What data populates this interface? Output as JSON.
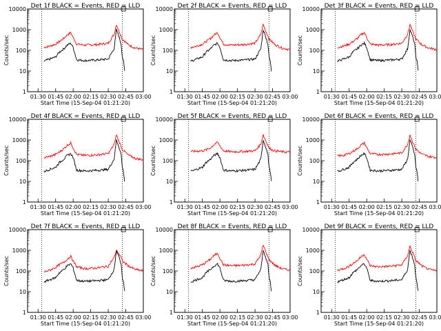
{
  "chart_data": {
    "type": "line",
    "yscale": "log",
    "ylim": [
      1,
      10000
    ],
    "xlim": [
      "01:21",
      "03:00"
    ],
    "ylabel": "Counts/sec",
    "xlabel": "Start Time (15-Sep-04 01:21:20)",
    "x_ticks": [
      "01:30",
      "01:45",
      "02:00",
      "02:15",
      "02:30",
      "02:45",
      "03:00"
    ],
    "y_ticks": [
      "1",
      "10",
      "100",
      "1000",
      "10000"
    ],
    "reference_lines": [
      "01:33",
      "02:42"
    ],
    "colors": {
      "events": "#000000",
      "lld": "#ff0000"
    },
    "time_points": [
      "01:35",
      "01:40",
      "01:45",
      "01:48",
      "01:52",
      "01:55",
      "01:58",
      "02:00",
      "02:03",
      "02:10",
      "02:20",
      "02:30",
      "02:35",
      "02:37",
      "02:39",
      "02:41",
      "02:42",
      "02:43",
      "02:44",
      "02:47",
      "02:53",
      "03:00"
    ],
    "panels": [
      {
        "title": "Det 1f BLACK = Events, RED = LLD",
        "events": [
          30,
          38,
          48,
          80,
          120,
          180,
          220,
          140,
          35,
          32,
          34,
          38,
          120,
          1000,
          500,
          200,
          50,
          30,
          10,
          null,
          null,
          null
        ],
        "lld": [
          140,
          160,
          200,
          260,
          380,
          560,
          720,
          420,
          200,
          180,
          190,
          220,
          600,
          1800,
          900,
          500,
          330,
          320,
          280,
          190,
          130,
          110
        ]
      },
      {
        "title": "Det 2f BLACK = Events, RED = LLD",
        "events": [
          30,
          38,
          48,
          80,
          120,
          180,
          220,
          140,
          35,
          32,
          34,
          38,
          120,
          1000,
          500,
          200,
          50,
          30,
          10,
          null,
          null,
          null
        ],
        "lld": [
          140,
          160,
          200,
          260,
          380,
          560,
          720,
          420,
          200,
          180,
          190,
          220,
          600,
          1800,
          900,
          500,
          330,
          320,
          280,
          190,
          130,
          110
        ]
      },
      {
        "title": "Det 3f BLACK = Events, RED = LLD",
        "events": [
          30,
          38,
          48,
          80,
          120,
          180,
          220,
          140,
          35,
          32,
          34,
          38,
          120,
          1000,
          500,
          200,
          50,
          30,
          10,
          null,
          null,
          null
        ],
        "lld": [
          140,
          160,
          200,
          260,
          380,
          560,
          720,
          420,
          200,
          180,
          190,
          220,
          600,
          1800,
          900,
          500,
          330,
          320,
          280,
          190,
          130,
          110
        ]
      },
      {
        "title": "Det 4f BLACK = Events, RED = LLD",
        "events": [
          30,
          38,
          48,
          80,
          120,
          180,
          220,
          140,
          35,
          32,
          34,
          38,
          120,
          1000,
          500,
          200,
          50,
          30,
          10,
          null,
          null,
          null
        ],
        "lld": [
          140,
          160,
          200,
          260,
          380,
          560,
          720,
          420,
          200,
          180,
          190,
          220,
          600,
          1800,
          900,
          500,
          330,
          320,
          280,
          190,
          130,
          110
        ]
      },
      {
        "title": "Det 5f BLACK = Events, RED = LLD",
        "events": [
          30,
          38,
          48,
          80,
          120,
          180,
          220,
          140,
          35,
          32,
          34,
          38,
          120,
          1000,
          500,
          200,
          50,
          30,
          10,
          null,
          null,
          null
        ],
        "lld": [
          280,
          290,
          300,
          330,
          420,
          600,
          780,
          520,
          300,
          270,
          280,
          300,
          650,
          1800,
          950,
          560,
          400,
          380,
          350,
          300,
          270,
          260
        ]
      },
      {
        "title": "Det 6f BLACK = Events, RED = LLD",
        "events": [
          30,
          38,
          48,
          80,
          120,
          180,
          220,
          140,
          35,
          32,
          34,
          38,
          120,
          1000,
          500,
          200,
          50,
          30,
          10,
          null,
          null,
          null
        ],
        "lld": [
          170,
          180,
          220,
          280,
          380,
          560,
          720,
          430,
          220,
          200,
          210,
          240,
          620,
          1800,
          900,
          500,
          350,
          330,
          290,
          210,
          160,
          140
        ]
      },
      {
        "title": "Det 7f BLACK = Events, RED = LLD",
        "events": [
          30,
          38,
          48,
          80,
          120,
          180,
          220,
          140,
          35,
          32,
          34,
          38,
          120,
          1000,
          500,
          200,
          50,
          30,
          10,
          null,
          null,
          null
        ],
        "lld": [
          90,
          110,
          150,
          200,
          260,
          380,
          520,
          300,
          160,
          130,
          140,
          170,
          450,
          1000,
          700,
          450,
          300,
          280,
          250,
          180,
          120,
          100
        ]
      },
      {
        "title": "Det 8f BLACK = Events, RED = LLD",
        "events": [
          30,
          38,
          48,
          80,
          120,
          180,
          220,
          140,
          35,
          32,
          34,
          38,
          120,
          1000,
          500,
          200,
          50,
          30,
          10,
          null,
          null,
          null
        ],
        "lld": [
          140,
          160,
          200,
          260,
          380,
          560,
          720,
          420,
          200,
          180,
          190,
          220,
          600,
          1800,
          900,
          500,
          330,
          320,
          280,
          190,
          130,
          110
        ]
      },
      {
        "title": "Det 9f BLACK = Events, RED = LLD",
        "events": [
          30,
          38,
          48,
          80,
          120,
          180,
          220,
          140,
          35,
          32,
          34,
          38,
          120,
          1000,
          500,
          200,
          50,
          30,
          10,
          null,
          null,
          null
        ],
        "lld": [
          110,
          130,
          170,
          230,
          320,
          480,
          650,
          380,
          180,
          160,
          170,
          200,
          560,
          1600,
          850,
          450,
          300,
          290,
          260,
          180,
          120,
          100
        ]
      }
    ]
  }
}
